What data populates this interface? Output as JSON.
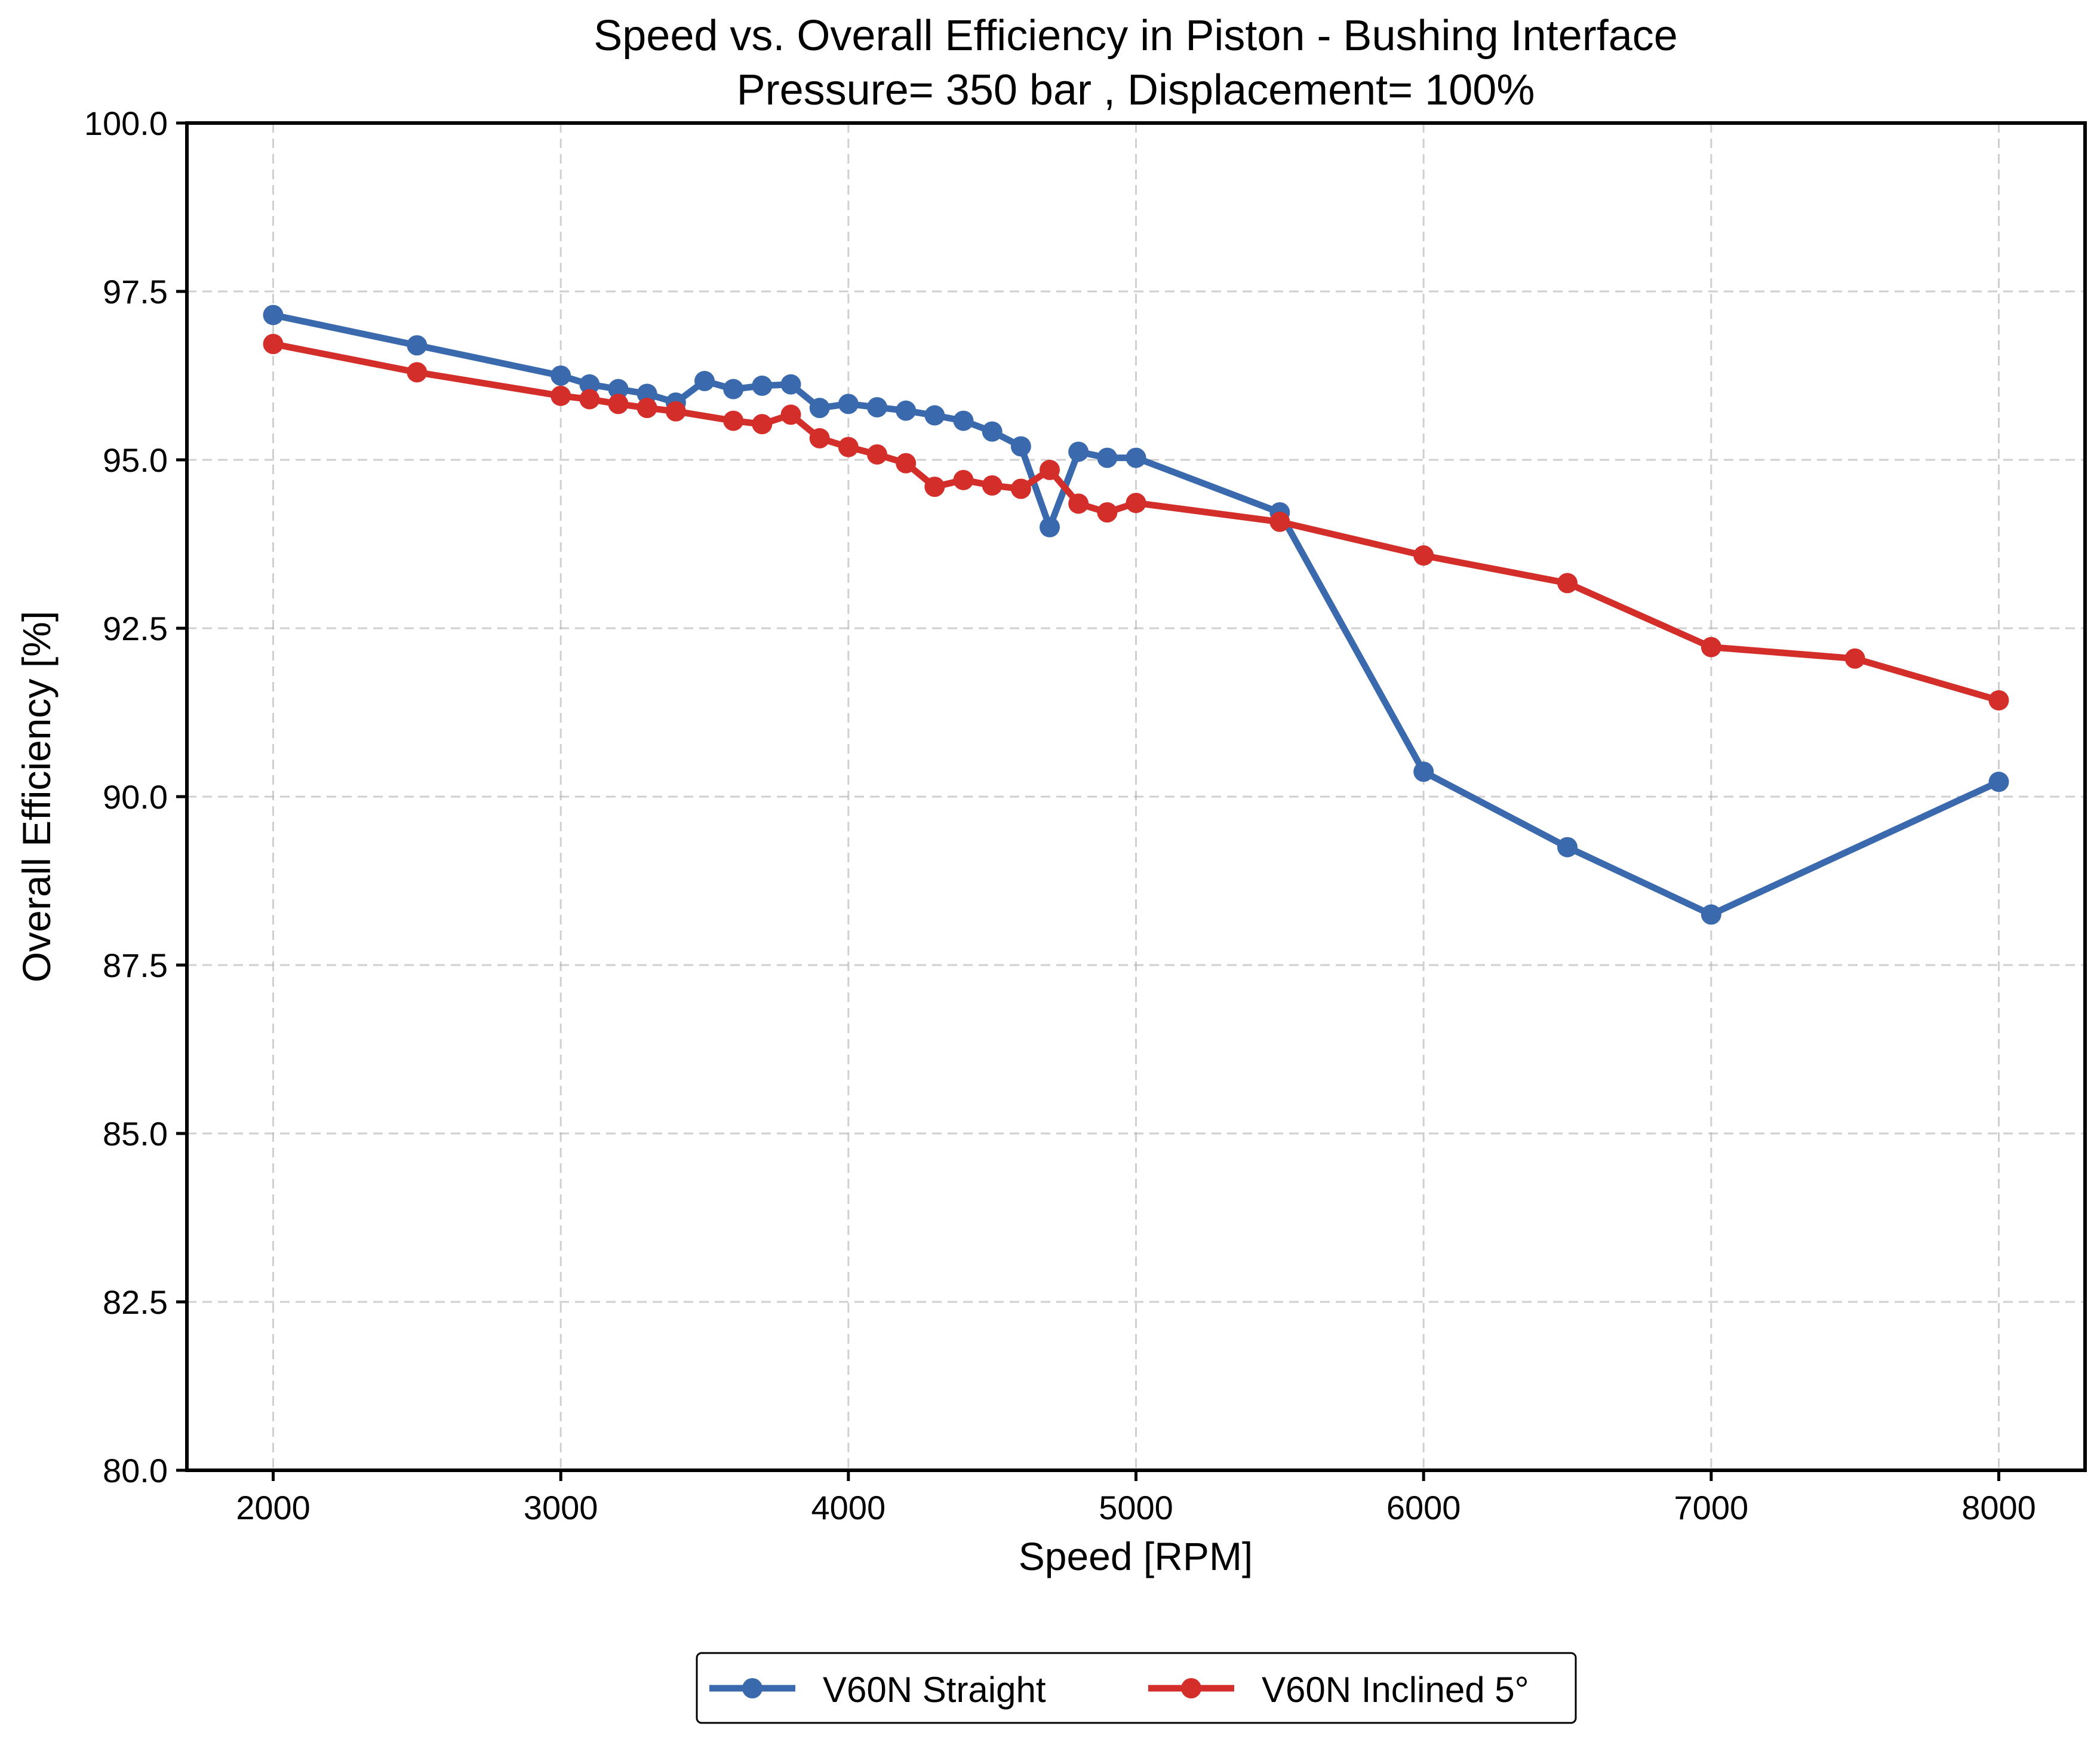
{
  "chart_data": {
    "type": "line",
    "title": "Speed vs. Overall Efficiency in Piston - Bushing Interface",
    "subtitle": "Pressure= 350 bar , Displacement= 100%",
    "xlabel": "Speed [RPM]",
    "ylabel": "Overall Efficiency [%]",
    "xlim": [
      1700,
      8300
    ],
    "ylim": [
      80,
      100
    ],
    "xticks": [
      2000,
      3000,
      4000,
      5000,
      6000,
      7000,
      8000
    ],
    "xtick_labels": [
      "2000",
      "3000",
      "4000",
      "5000",
      "6000",
      "7000",
      "8000"
    ],
    "yticks": [
      80,
      82.5,
      85,
      87.5,
      90,
      92.5,
      95,
      97.5,
      100
    ],
    "ytick_labels": [
      "80.0",
      "82.5",
      "85.0",
      "87.5",
      "90.0",
      "92.5",
      "95.0",
      "97.5",
      "100.0"
    ],
    "grid": true,
    "legend_position": "bottom-center, below axes",
    "series": [
      {
        "name": "V60N Straight",
        "color": "#3a6aad",
        "x": [
          2000,
          2500,
          3000,
          3100,
          3200,
          3300,
          3400,
          3500,
          3600,
          3700,
          3800,
          3900,
          4000,
          4100,
          4200,
          4300,
          4400,
          4500,
          4600,
          4700,
          4800,
          4900,
          5000,
          5500,
          6000,
          6500,
          7000,
          8000
        ],
        "values": [
          97.15,
          96.7,
          96.25,
          96.12,
          96.05,
          95.98,
          95.85,
          96.17,
          96.05,
          96.1,
          96.12,
          95.77,
          95.83,
          95.78,
          95.73,
          95.66,
          95.58,
          95.42,
          95.2,
          94.0,
          95.12,
          95.03,
          95.03,
          94.22,
          90.37,
          89.25,
          88.25,
          90.22
        ]
      },
      {
        "name": "V60N Inclined 5°",
        "color": "#d42e2a",
        "x": [
          2000,
          2500,
          3000,
          3100,
          3200,
          3300,
          3400,
          3600,
          3700,
          3800,
          3900,
          4000,
          4100,
          4200,
          4300,
          4400,
          4500,
          4600,
          4700,
          4800,
          4900,
          5000,
          5500,
          6000,
          6500,
          7000,
          7500,
          8000
        ],
        "values": [
          96.72,
          96.3,
          95.95,
          95.9,
          95.83,
          95.77,
          95.72,
          95.58,
          95.53,
          95.67,
          95.32,
          95.19,
          95.08,
          94.95,
          94.6,
          94.7,
          94.62,
          94.57,
          94.85,
          94.35,
          94.22,
          94.36,
          94.08,
          93.58,
          93.17,
          92.22,
          92.05,
          91.43
        ]
      }
    ]
  }
}
